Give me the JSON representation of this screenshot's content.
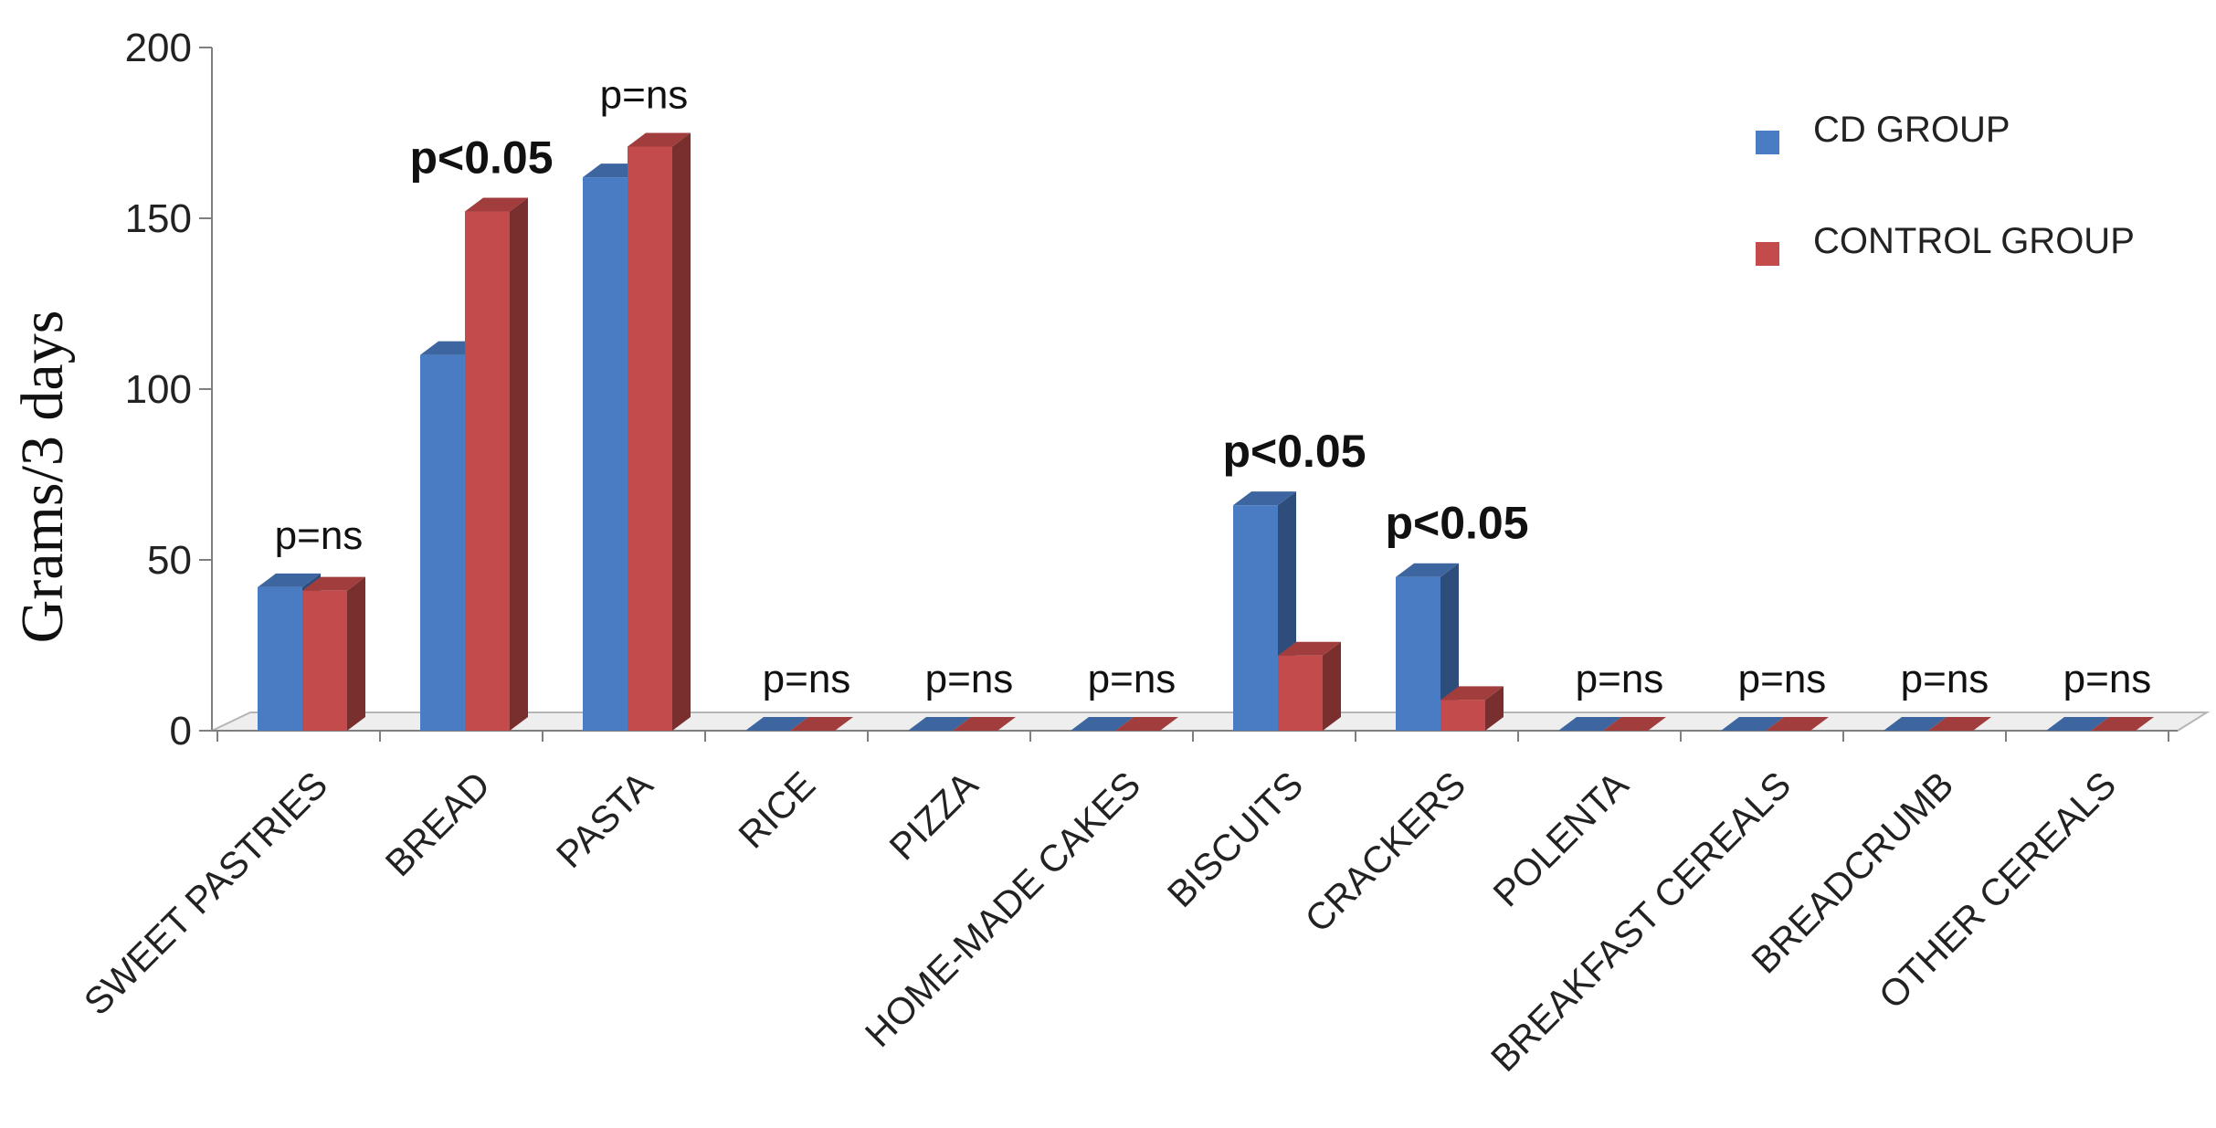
{
  "chart_data": {
    "type": "bar",
    "three_d": true,
    "ylabel": "Grams/3  days",
    "xlabel": "",
    "ylim": [
      0,
      200
    ],
    "yticks": [
      0,
      50,
      100,
      150,
      200
    ],
    "legend_position": "top-right",
    "categories": [
      "SWEET PASTRIES",
      "BREAD",
      "PASTA",
      "RICE",
      "PIZZA",
      "HOME-MADE CAKES",
      "BISCUITS",
      "CRACKERS",
      "POLENTA",
      "BREAKFAST CEREALS",
      "BREADCRUMB",
      "OTHER CEREALS"
    ],
    "series": [
      {
        "name": "CD GROUP",
        "color": "#4a7cc4",
        "values": [
          42,
          110,
          162,
          0,
          0,
          0,
          66,
          45,
          0,
          0,
          0,
          0
        ]
      },
      {
        "name": "CONTROL GROUP",
        "color": "#c44b4b",
        "values": [
          41,
          152,
          171,
          0,
          0,
          0,
          22,
          9,
          0,
          0,
          0,
          0
        ]
      }
    ],
    "annotations": [
      {
        "category": "SWEET PASTRIES",
        "text": "p=ns",
        "bold": false
      },
      {
        "category": "BREAD",
        "text": "p<0.05",
        "bold": true
      },
      {
        "category": "PASTA",
        "text": "p=ns",
        "bold": false
      },
      {
        "category": "RICE",
        "text": "p=ns",
        "bold": false
      },
      {
        "category": "PIZZA",
        "text": "p=ns",
        "bold": false
      },
      {
        "category": "HOME-MADE CAKES",
        "text": "p=ns",
        "bold": false
      },
      {
        "category": "BISCUITS",
        "text": "p<0.05",
        "bold": true
      },
      {
        "category": "CRACKERS",
        "text": "p<0.05",
        "bold": true
      },
      {
        "category": "POLENTA",
        "text": "p=ns",
        "bold": false
      },
      {
        "category": "BREAKFAST CEREALS",
        "text": "p=ns",
        "bold": false
      },
      {
        "category": "BREADCRUMB",
        "text": "p=ns",
        "bold": false
      },
      {
        "category": "OTHER CEREALS",
        "text": "p=ns",
        "bold": false
      }
    ]
  }
}
